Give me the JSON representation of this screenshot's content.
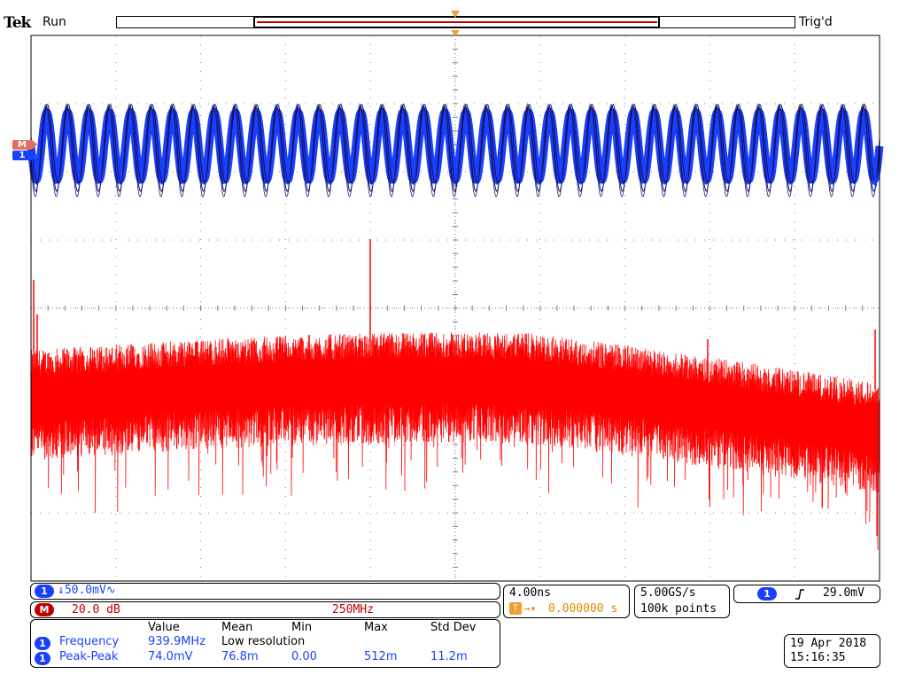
{
  "header": {
    "brand": "Tek",
    "acq_state": "Run",
    "trigger_state": "Trig'd"
  },
  "channel_markers": {
    "ch1": "1",
    "math": "M"
  },
  "colors": {
    "ch1": "#1a40ff",
    "math": "#ff0000",
    "trigger": "#f0a030",
    "grid": "#808080"
  },
  "ch1_readout": {
    "badge": "1",
    "scale": "↓50.0mV∿"
  },
  "math_readout": {
    "badge": "M",
    "scale": "20.0 dB",
    "span": "250MHz"
  },
  "horizontal": {
    "time_per_div": "4.00ns",
    "delay": "0.000000 s",
    "sample_rate": "5.00GS/s",
    "record_length": "100k points"
  },
  "trigger": {
    "badge": "1",
    "slope_icon": "rising-edge",
    "level": "29.0mV"
  },
  "measurements": {
    "headers": [
      "Value",
      "Mean",
      "Min",
      "Max",
      "Std Dev"
    ],
    "rows": [
      {
        "badge": "1",
        "name": "Frequency",
        "value": "939.9MHz",
        "mean": "Low resolution",
        "min": "",
        "max": "",
        "std": ""
      },
      {
        "badge": "1",
        "name": "Peak-Peak",
        "value": "74.0mV",
        "mean": "76.8m",
        "min": "0.00",
        "max": "512m",
        "std": "11.2m"
      }
    ]
  },
  "datetime": {
    "date": "19 Apr 2018",
    "time": "15:16:35"
  }
}
